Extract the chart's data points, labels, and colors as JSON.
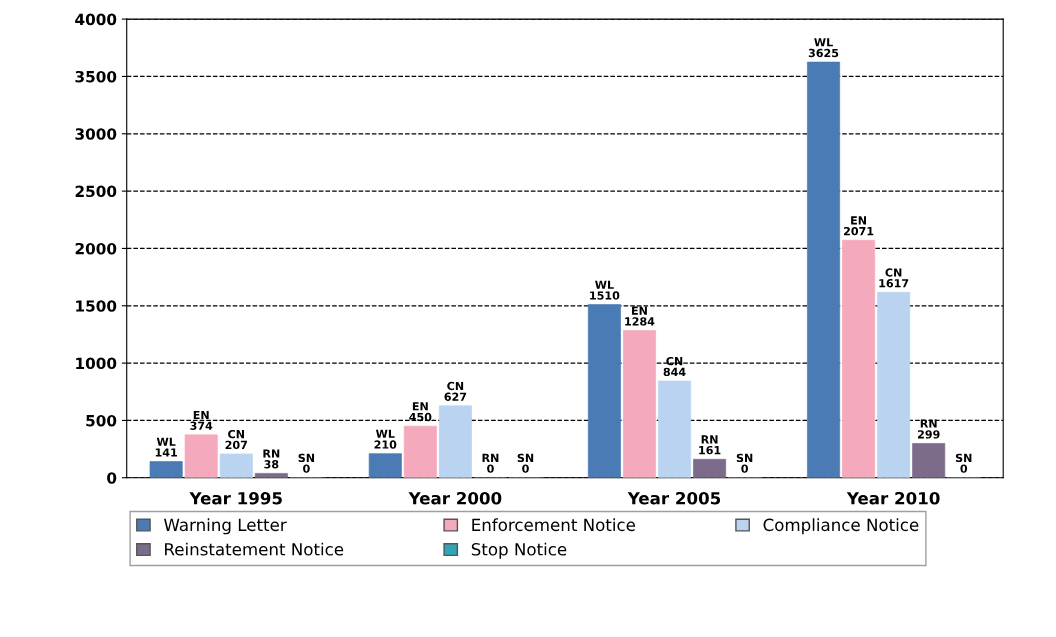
{
  "chart_data": {
    "type": "bar",
    "categories": [
      "Year 1995",
      "Year 2000",
      "Year 2005",
      "Year 2010"
    ],
    "series": [
      {
        "name": "Warning Letter",
        "color": "#4a7bb5",
        "values": [
          141,
          210,
          1510,
          3625
        ],
        "value_labels": [
          "WL\n141",
          "WL\n210",
          "WL\n1510",
          "WL\n3625"
        ]
      },
      {
        "name": "Enforcement Notice",
        "color": "#f5a9bc",
        "values": [
          374,
          450,
          1284,
          2071
        ],
        "value_labels": [
          "EN\n374",
          "EN\n450",
          "EN\n1284",
          "EN\n2071"
        ]
      },
      {
        "name": "Compliance Notice",
        "color": "#b9d3f0",
        "values": [
          207,
          627,
          844,
          1617
        ],
        "value_labels": [
          "CN\n207",
          "CN\n627",
          "CN\n844",
          "CN\n1617"
        ]
      },
      {
        "name": "Reinstatement Notice",
        "color": "#7d6b8c",
        "values": [
          38,
          0,
          161,
          299
        ],
        "value_labels": [
          "RN\n38",
          "RN\n0",
          "RN\n161",
          "RN\n299"
        ]
      },
      {
        "name": "Stop Notice",
        "color": "#2ea6b8",
        "values": [
          0,
          0,
          0,
          0
        ],
        "value_labels": [
          "SN\n0",
          "SN\n0",
          "SN\n0",
          "SN\n0"
        ]
      }
    ],
    "ylim": [
      0,
      4000
    ],
    "yticks": [
      0,
      500,
      1000,
      1500,
      2000,
      2500,
      3000,
      3500,
      4000
    ],
    "grid": "y",
    "legend": "bottom"
  }
}
